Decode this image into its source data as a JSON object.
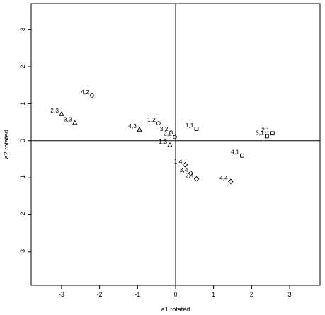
{
  "chart_data": {
    "type": "scatter",
    "xlabel": "a1 rotated",
    "ylabel": "a2 rotated",
    "xlim": [
      -3.8,
      3.8
    ],
    "ylim": [
      -3.9,
      3.7
    ],
    "x_ticks": [
      -3,
      -2,
      -1,
      0,
      1,
      2,
      3
    ],
    "y_ticks": [
      -3,
      -2,
      -1,
      0,
      1,
      2,
      3
    ],
    "reference_lines": {
      "x": 0,
      "y": 0
    },
    "grid": false,
    "series": [
      {
        "marker": "circle",
        "points": [
          {
            "label": "4,2",
            "x": -2.2,
            "y": 1.22
          },
          {
            "label": "1,2",
            "x": -0.45,
            "y": 0.47
          },
          {
            "label": "3,2",
            "x": -0.12,
            "y": 0.22
          },
          {
            "label": "2,2",
            "x": -0.02,
            "y": 0.1
          }
        ]
      },
      {
        "marker": "triangle",
        "points": [
          {
            "label": "2,3",
            "x": -3.0,
            "y": 0.72
          },
          {
            "label": "3,3",
            "x": -2.65,
            "y": 0.48
          },
          {
            "label": "4,3",
            "x": -0.95,
            "y": 0.3
          },
          {
            "label": "1,3",
            "x": -0.15,
            "y": -0.12
          }
        ]
      },
      {
        "marker": "square",
        "points": [
          {
            "label": "1,1",
            "x": 0.55,
            "y": 0.32
          },
          {
            "label": "2,1",
            "x": 2.55,
            "y": 0.2
          },
          {
            "label": "3,1",
            "x": 2.4,
            "y": 0.12
          },
          {
            "label": "4,1",
            "x": 1.75,
            "y": -0.4
          }
        ]
      },
      {
        "marker": "diamond",
        "points": [
          {
            "label": "1,4",
            "x": 0.25,
            "y": -0.65
          },
          {
            "label": "3,4",
            "x": 0.4,
            "y": -0.88
          },
          {
            "label": "2,4",
            "x": 0.55,
            "y": -1.03
          },
          {
            "label": "4,4",
            "x": 1.45,
            "y": -1.1
          }
        ]
      }
    ]
  }
}
